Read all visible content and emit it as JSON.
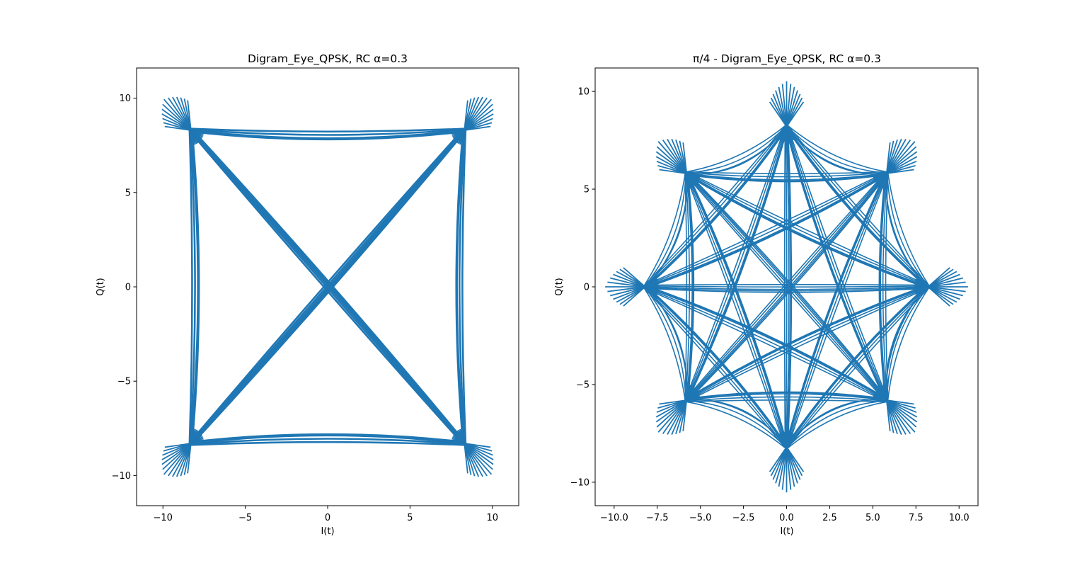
{
  "chart_data": [
    {
      "type": "line",
      "title": "Digram_Eye_QPSK, RC α=0.3",
      "xlabel": "I(t)",
      "ylabel": "Q(t)",
      "xlim": [
        -11.6,
        11.6
      ],
      "ylim": [
        -11.6,
        11.6
      ],
      "xticks": [
        -10,
        -5,
        0,
        5,
        10
      ],
      "xtick_labels": [
        "−10",
        "−5",
        "0",
        "5",
        "10"
      ],
      "yticks": [
        -10,
        -5,
        0,
        5,
        10
      ],
      "ytick_labels": [
        "−10",
        "−5",
        "0",
        "5",
        "10"
      ],
      "grid": false,
      "series_color": "#1f77b4",
      "constellation": [
        [
          8.3,
          8.3
        ],
        [
          -8.3,
          8.3
        ],
        [
          -8.3,
          -8.3
        ],
        [
          8.3,
          -8.3
        ]
      ]
    },
    {
      "type": "line",
      "title": "π/4 - Digram_Eye_QPSK, RC α=0.3",
      "xlabel": "I(t)",
      "ylabel": "Q(t)",
      "xlim": [
        -11.1,
        11.1
      ],
      "ylim": [
        -11.2,
        11.2
      ],
      "xticks": [
        -10,
        -7.5,
        -5,
        -2.5,
        0,
        2.5,
        5,
        7.5,
        10
      ],
      "xtick_labels": [
        "−10.0",
        "−7.5",
        "−5.0",
        "−2.5",
        "0.0",
        "2.5",
        "5.0",
        "7.5",
        "10.0"
      ],
      "yticks": [
        -10,
        -5,
        0,
        5,
        10
      ],
      "ytick_labels": [
        "−10",
        "−5",
        "0",
        "5",
        "10"
      ],
      "grid": false,
      "series_color": "#1f77b4",
      "constellation": [
        [
          8.2,
          0
        ],
        [
          5.8,
          5.8
        ],
        [
          0,
          8.2
        ],
        [
          -5.8,
          5.8
        ],
        [
          -8.2,
          0
        ],
        [
          -5.8,
          -5.8
        ],
        [
          0,
          -8.2
        ],
        [
          5.8,
          -5.8
        ]
      ]
    }
  ]
}
